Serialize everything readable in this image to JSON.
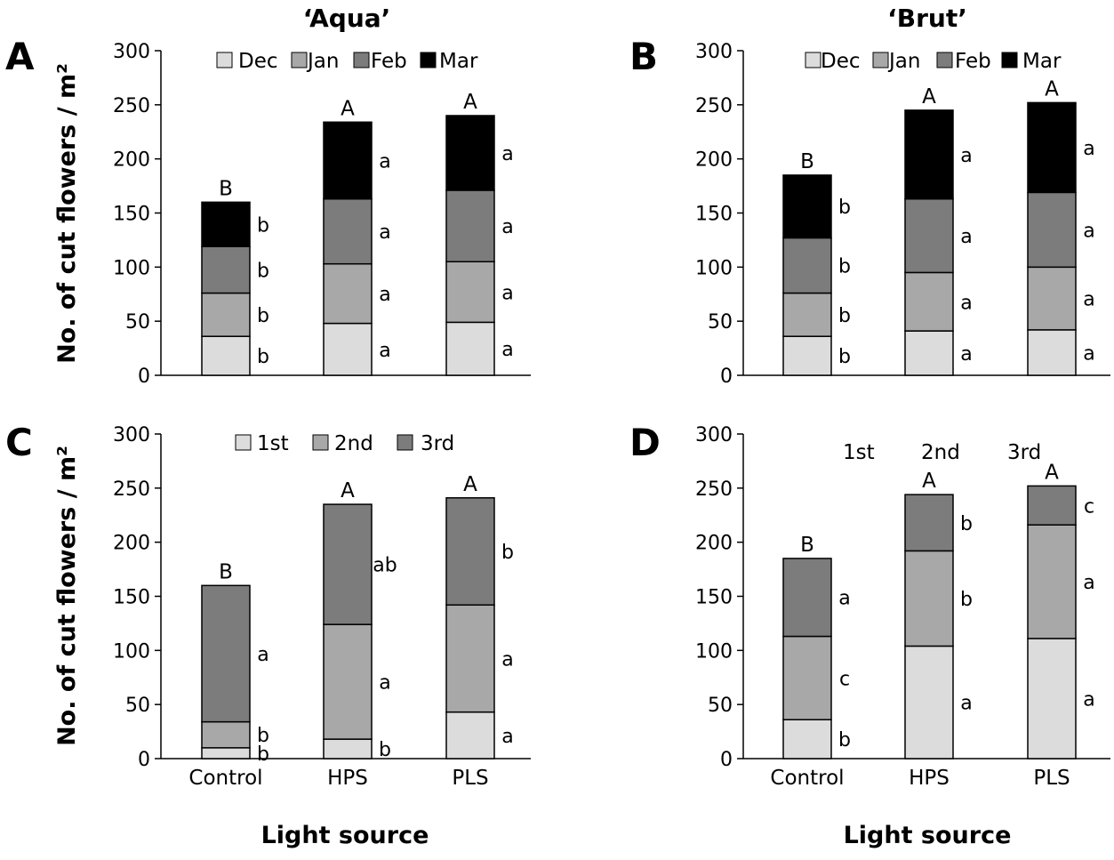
{
  "figure": {
    "cultivar_titles": [
      "‘Aqua’",
      "‘Brut’"
    ],
    "ylabel": "No. of cut flowers / m²",
    "xlabel": "Light source"
  },
  "chart_data": [
    {
      "panel": "A",
      "type": "bar",
      "stacked": true,
      "title": "‘Aqua’",
      "ylim": [
        0,
        300
      ],
      "yticks": [
        0,
        50,
        100,
        150,
        200,
        250,
        300
      ],
      "categories": [
        "Control",
        "HPS",
        "PLS"
      ],
      "legend_position": "top",
      "series": [
        {
          "name": "Dec",
          "color": "#dcdcdc",
          "values": [
            36,
            48,
            49
          ],
          "letters": [
            "b",
            "a",
            "a"
          ]
        },
        {
          "name": "Jan",
          "color": "#a8a8a8",
          "values": [
            40,
            55,
            56
          ],
          "letters": [
            "b",
            "a",
            "a"
          ]
        },
        {
          "name": "Feb",
          "color": "#7c7c7c",
          "values": [
            43,
            60,
            66
          ],
          "letters": [
            "b",
            "a",
            "a"
          ]
        },
        {
          "name": "Mar",
          "color": "#000000",
          "values": [
            41,
            71,
            69
          ],
          "letters": [
            "b",
            "a",
            "a"
          ]
        }
      ],
      "totals_letters": [
        "B",
        "A",
        "A"
      ]
    },
    {
      "panel": "B",
      "type": "bar",
      "stacked": true,
      "title": "‘Brut’",
      "ylim": [
        0,
        300
      ],
      "yticks": [
        0,
        50,
        100,
        150,
        200,
        250,
        300
      ],
      "categories": [
        "Control",
        "HPS",
        "PLS"
      ],
      "legend_position": "top",
      "series": [
        {
          "name": "Dec",
          "color": "#dcdcdc",
          "values": [
            36,
            41,
            42
          ],
          "letters": [
            "b",
            "a",
            "a"
          ]
        },
        {
          "name": "Jan",
          "color": "#a8a8a8",
          "values": [
            40,
            54,
            58
          ],
          "letters": [
            "b",
            "a",
            "a"
          ]
        },
        {
          "name": "Feb",
          "color": "#7c7c7c",
          "values": [
            51,
            68,
            69
          ],
          "letters": [
            "b",
            "a",
            "a"
          ]
        },
        {
          "name": "Mar",
          "color": "#000000",
          "values": [
            58,
            82,
            83
          ],
          "letters": [
            "b",
            "a",
            "a"
          ]
        }
      ],
      "totals_letters": [
        "B",
        "A",
        "A"
      ]
    },
    {
      "panel": "C",
      "type": "bar",
      "stacked": true,
      "ylim": [
        0,
        300
      ],
      "yticks": [
        0,
        50,
        100,
        150,
        200,
        250,
        300
      ],
      "categories": [
        "Control",
        "HPS",
        "PLS"
      ],
      "legend_position": "top",
      "series": [
        {
          "name": "1st",
          "color": "#dcdcdc",
          "values": [
            10,
            18,
            43
          ],
          "letters": [
            "b",
            "b",
            "a"
          ]
        },
        {
          "name": "2nd",
          "color": "#a8a8a8",
          "values": [
            24,
            106,
            99
          ],
          "letters": [
            "b",
            "a",
            "a"
          ]
        },
        {
          "name": "3rd",
          "color": "#7c7c7c",
          "values": [
            126,
            111,
            99
          ],
          "letters": [
            "a",
            "ab",
            "b"
          ]
        }
      ],
      "totals_letters": [
        "B",
        "A",
        "A"
      ]
    },
    {
      "panel": "D",
      "type": "bar",
      "stacked": true,
      "ylim": [
        0,
        300
      ],
      "yticks": [
        0,
        50,
        100,
        150,
        200,
        250,
        300
      ],
      "categories": [
        "Control",
        "HPS",
        "PLS"
      ],
      "legend_position": "top (text only)",
      "series": [
        {
          "name": "1st",
          "color": "#dcdcdc",
          "values": [
            36,
            104,
            111
          ],
          "letters": [
            "b",
            "a",
            "a"
          ]
        },
        {
          "name": "2nd",
          "color": "#a8a8a8",
          "values": [
            77,
            88,
            105
          ],
          "letters": [
            "c",
            "b",
            "a"
          ]
        },
        {
          "name": "3rd",
          "color": "#7c7c7c",
          "values": [
            72,
            52,
            36
          ],
          "letters": [
            "a",
            "b",
            "c"
          ]
        }
      ],
      "totals_letters": [
        "B",
        "A",
        "A"
      ]
    }
  ]
}
